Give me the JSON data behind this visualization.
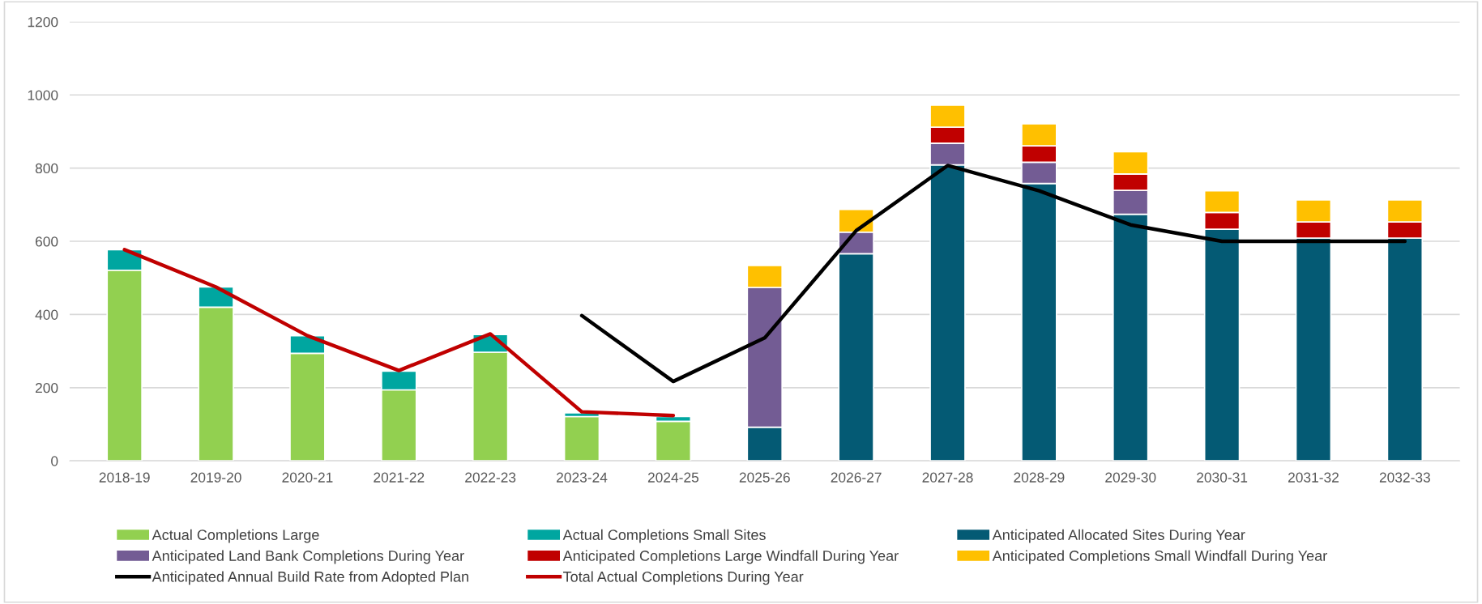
{
  "chart_data": {
    "type": "bar",
    "stacked": true,
    "categories": [
      "2018-19",
      "2019-20",
      "2020-21",
      "2021-22",
      "2022-23",
      "2023-24",
      "2024-25",
      "2025-26",
      "2026-27",
      "2027-28",
      "2028-29",
      "2029-30",
      "2030-31",
      "2031-32",
      "2032-33"
    ],
    "series": [
      {
        "name": "Actual Completions Large",
        "color": "#92d050",
        "values": [
          521,
          420,
          294,
          194,
          297,
          121,
          108,
          null,
          null,
          null,
          null,
          null,
          null,
          null,
          null
        ]
      },
      {
        "name": "Actual Completions Small Sites",
        "color": "#00a6a0",
        "values": [
          56,
          55,
          48,
          51,
          48,
          10,
          13,
          null,
          null,
          null,
          null,
          null,
          null,
          null,
          null
        ]
      },
      {
        "name": "Anticipated Allocated Sites During Year",
        "color": "#045a74",
        "values": [
          null,
          null,
          null,
          null,
          null,
          null,
          null,
          92,
          566,
          809,
          758,
          674,
          633,
          609,
          609
        ]
      },
      {
        "name": "Anticipated Land Bank Completions During Year",
        "color": "#735c94",
        "values": [
          null,
          null,
          null,
          null,
          null,
          null,
          null,
          382,
          59,
          59,
          58,
          65,
          null,
          null,
          null
        ]
      },
      {
        "name": "Anticipated Completions Large Windfall During Year",
        "color": "#c00000",
        "values": [
          null,
          null,
          null,
          null,
          null,
          null,
          null,
          null,
          null,
          44,
          45,
          45,
          46,
          44,
          44
        ]
      },
      {
        "name": "Anticipated Completions Small Windfall During Year",
        "color": "#ffc000",
        "values": [
          null,
          null,
          null,
          null,
          null,
          null,
          null,
          60,
          62,
          60,
          60,
          61,
          59,
          60,
          60
        ]
      },
      {
        "name": "Anticipated Annual Build Rate from Adopted Plan",
        "type": "line",
        "color": "#000000",
        "values": [
          null,
          null,
          null,
          null,
          null,
          397,
          217,
          336,
          629,
          807,
          738,
          645,
          600,
          600,
          600
        ]
      },
      {
        "name": "Total Actual Completions During Year",
        "type": "line",
        "color": "#c00000",
        "values": [
          577,
          475,
          342,
          247,
          347,
          134,
          124,
          null,
          null,
          null,
          null,
          null,
          null,
          null,
          null
        ]
      }
    ],
    "ylim": [
      0,
      1200
    ],
    "yticks": [
      0,
      200,
      400,
      600,
      800,
      1000,
      1200
    ],
    "grid": "y",
    "legend": "bottom",
    "marker": "none",
    "line_style": "solid"
  }
}
